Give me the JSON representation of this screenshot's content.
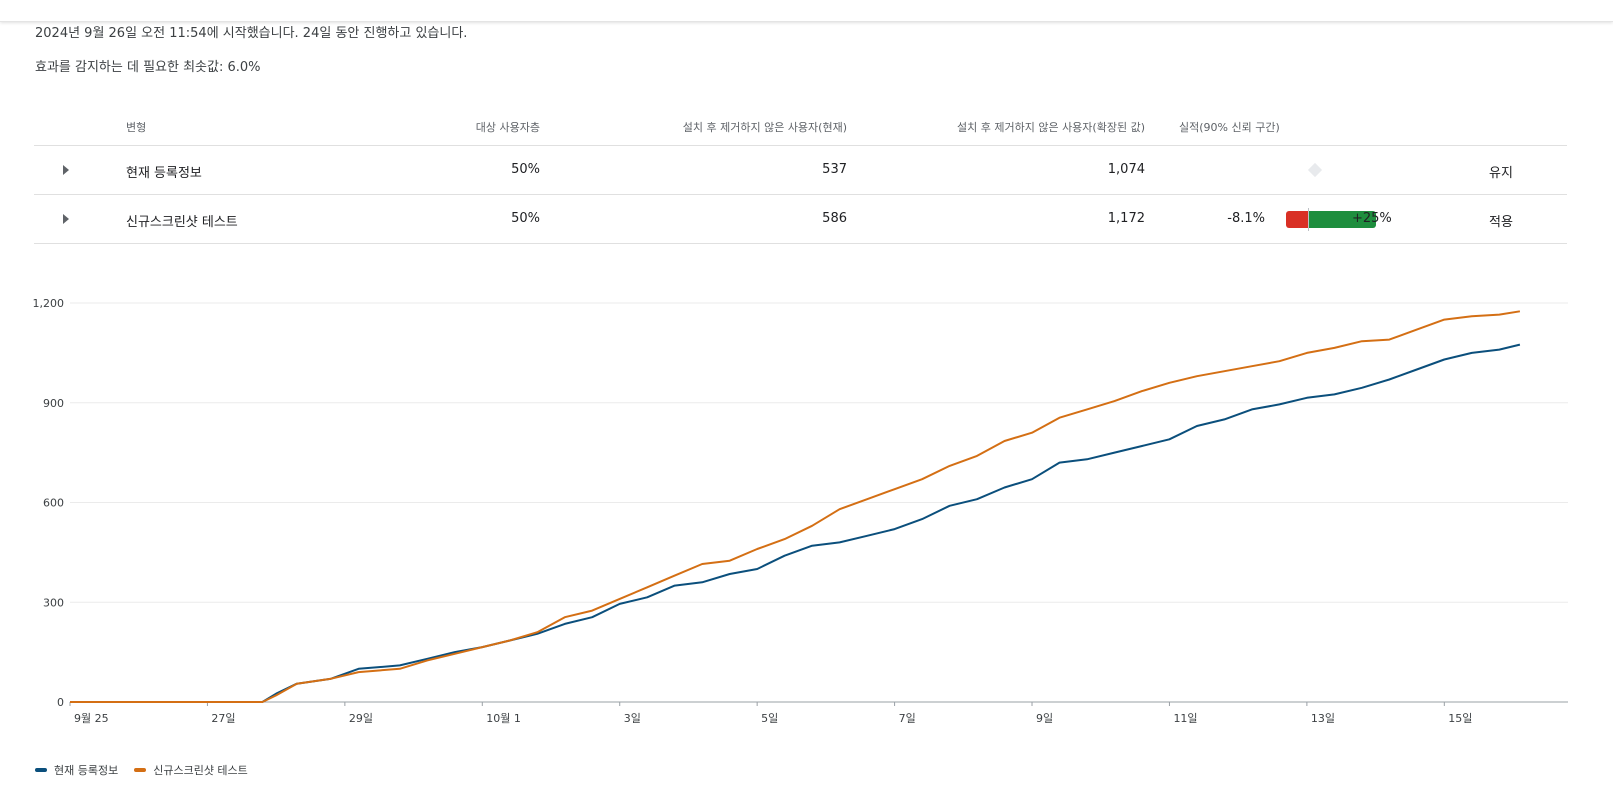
{
  "experiment": {
    "started_text": "2024년 9월 26일 오전 11:54에 시작했습니다. 24일 동안 진행하고 있습니다.",
    "minimum_effect_text": "효과를 감지하는 데 필요한 최솟값: 6.0%"
  },
  "table": {
    "headers": {
      "variant": "변형",
      "audience": "대상 사용자층",
      "retained_current": "설치 후 제거하지 않은 사용자(현재)",
      "retained_scaled": "설치 후 제거하지 않은 사용자(확장된 값)",
      "performance": "실적(90% 신뢰 구간)"
    },
    "rows": [
      {
        "name": "현재 등록정보",
        "audience": "50%",
        "retained_current": "537",
        "retained_scaled": "1,074",
        "perf_low": "",
        "perf_high": "",
        "action": "유지"
      },
      {
        "name": "신규스크린샷 테스트",
        "audience": "50%",
        "retained_current": "586",
        "retained_scaled": "1,172",
        "perf_low": "-8.1%",
        "perf_high": "+25%",
        "action": "적용"
      }
    ],
    "performance_range": {
      "low": -8.1,
      "high": 25
    }
  },
  "chart_data": {
    "type": "line",
    "title": "",
    "xlabel": "",
    "ylabel": "",
    "x_ticks": [
      "9월 25",
      "27일",
      "29일",
      "10월 1",
      "3일",
      "5일",
      "7일",
      "9일",
      "11일",
      "13일",
      "15일"
    ],
    "y_ticks": [
      "0",
      "300",
      "600",
      "900",
      "1,200"
    ],
    "ylim": [
      0,
      1200
    ],
    "x_domain_days": [
      0,
      21.8
    ],
    "x_tick_days": [
      0,
      2,
      4,
      6,
      8,
      10,
      12,
      14,
      16,
      18,
      20
    ],
    "grid": true,
    "legend_position": "bottom-left",
    "series": [
      {
        "name": "현재 등록정보",
        "color": "#0b4f7c",
        "points": [
          [
            0,
            0
          ],
          [
            2.8,
            0
          ],
          [
            3.0,
            25
          ],
          [
            3.3,
            55
          ],
          [
            3.8,
            70
          ],
          [
            4.2,
            100
          ],
          [
            4.8,
            110
          ],
          [
            5.2,
            130
          ],
          [
            5.6,
            150
          ],
          [
            6.0,
            165
          ],
          [
            6.4,
            185
          ],
          [
            6.8,
            205
          ],
          [
            7.2,
            235
          ],
          [
            7.6,
            255
          ],
          [
            8.0,
            295
          ],
          [
            8.4,
            315
          ],
          [
            8.8,
            350
          ],
          [
            9.2,
            360
          ],
          [
            9.6,
            385
          ],
          [
            10.0,
            400
          ],
          [
            10.4,
            440
          ],
          [
            10.8,
            470
          ],
          [
            11.2,
            480
          ],
          [
            11.6,
            500
          ],
          [
            12.0,
            520
          ],
          [
            12.4,
            550
          ],
          [
            12.8,
            590
          ],
          [
            13.2,
            610
          ],
          [
            13.6,
            645
          ],
          [
            14.0,
            670
          ],
          [
            14.4,
            720
          ],
          [
            14.8,
            730
          ],
          [
            15.2,
            750
          ],
          [
            15.6,
            770
          ],
          [
            16.0,
            790
          ],
          [
            16.4,
            830
          ],
          [
            16.8,
            850
          ],
          [
            17.2,
            880
          ],
          [
            17.6,
            895
          ],
          [
            18.0,
            915
          ],
          [
            18.4,
            925
          ],
          [
            18.8,
            945
          ],
          [
            19.2,
            970
          ],
          [
            19.6,
            1000
          ],
          [
            20.0,
            1030
          ],
          [
            20.4,
            1050
          ],
          [
            20.8,
            1060
          ],
          [
            21.1,
            1075
          ]
        ]
      },
      {
        "name": "신규스크린샷 테스트",
        "color": "#d46f14",
        "points": [
          [
            0,
            0
          ],
          [
            2.8,
            0
          ],
          [
            3.0,
            20
          ],
          [
            3.3,
            55
          ],
          [
            3.8,
            70
          ],
          [
            4.2,
            90
          ],
          [
            4.8,
            100
          ],
          [
            5.2,
            125
          ],
          [
            5.6,
            145
          ],
          [
            6.0,
            165
          ],
          [
            6.4,
            185
          ],
          [
            6.8,
            210
          ],
          [
            7.2,
            255
          ],
          [
            7.6,
            275
          ],
          [
            8.0,
            310
          ],
          [
            8.4,
            345
          ],
          [
            8.8,
            380
          ],
          [
            9.2,
            415
          ],
          [
            9.6,
            425
          ],
          [
            10.0,
            460
          ],
          [
            10.4,
            490
          ],
          [
            10.8,
            530
          ],
          [
            11.2,
            580
          ],
          [
            11.6,
            610
          ],
          [
            12.0,
            640
          ],
          [
            12.4,
            670
          ],
          [
            12.8,
            710
          ],
          [
            13.2,
            740
          ],
          [
            13.6,
            785
          ],
          [
            14.0,
            810
          ],
          [
            14.4,
            855
          ],
          [
            14.8,
            880
          ],
          [
            15.2,
            905
          ],
          [
            15.6,
            935
          ],
          [
            16.0,
            960
          ],
          [
            16.4,
            980
          ],
          [
            16.8,
            995
          ],
          [
            17.2,
            1010
          ],
          [
            17.6,
            1025
          ],
          [
            18.0,
            1050
          ],
          [
            18.4,
            1065
          ],
          [
            18.8,
            1085
          ],
          [
            19.2,
            1090
          ],
          [
            19.6,
            1120
          ],
          [
            20.0,
            1150
          ],
          [
            20.4,
            1160
          ],
          [
            20.8,
            1165
          ],
          [
            21.1,
            1175
          ]
        ]
      }
    ]
  }
}
